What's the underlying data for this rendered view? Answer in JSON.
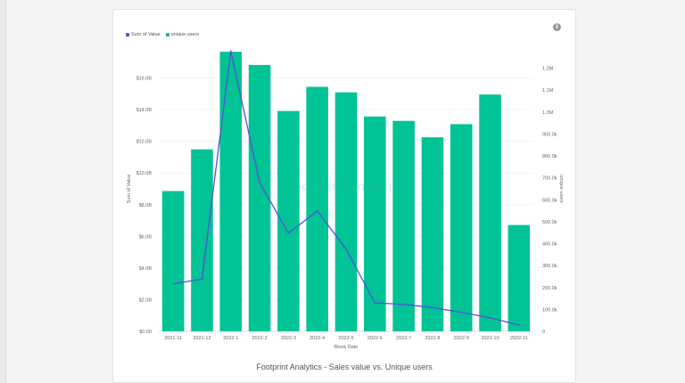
{
  "colors": {
    "bar": "#00c396",
    "line": "#5b4fd6",
    "grid": "#ececec"
  },
  "legend": [
    {
      "label": "Sum of Value",
      "color": "#5b4fd6"
    },
    {
      "label": "unique users",
      "color": "#00c396"
    }
  ],
  "caption": "Footprint Analytics - Sales value vs. Unique users",
  "watermark": "Footprint Analytics",
  "info_icon": "info-icon",
  "chart_data": {
    "type": "bar",
    "categories": [
      "2021-11",
      "2021-12",
      "2022-1",
      "2022-2",
      "2022-3",
      "2022-4",
      "2022-5",
      "2022-6",
      "2022-7",
      "2022-8",
      "2022-9",
      "2022-10",
      "2022-11"
    ],
    "xlabel": "Block Date",
    "ylabel": "Sum of Value",
    "y2label": "unique users",
    "ylim": [
      0,
      18
    ],
    "y2lim": [
      0,
      1300000
    ],
    "yticks": [
      "$0.00",
      "$2.0B",
      "$4.0B",
      "$6.0B",
      "$8.0B",
      "$10.0B",
      "$12.0B",
      "$14.0B",
      "$16.0B"
    ],
    "y2ticks": [
      "0",
      "100.0k",
      "200.0k",
      "300.0k",
      "400.0k",
      "500.0k",
      "600.0k",
      "700.0k",
      "800.0k",
      "900.0k",
      "1.0M",
      "1.1M",
      "1.2M"
    ],
    "series": [
      {
        "name": "unique users",
        "type": "bar",
        "axis": "right",
        "values": [
          640000,
          830000,
          1275000,
          1215000,
          1005000,
          1115000,
          1090000,
          980000,
          960000,
          885000,
          945000,
          1080000,
          485000
        ]
      },
      {
        "name": "Sum of Value",
        "type": "line",
        "axis": "left",
        "values": [
          3.0,
          3.3,
          17.7,
          9.4,
          6.2,
          7.6,
          5.2,
          1.8,
          1.7,
          1.5,
          1.2,
          0.85,
          0.4
        ]
      }
    ],
    "legend_position": "top-left",
    "grid": true
  }
}
